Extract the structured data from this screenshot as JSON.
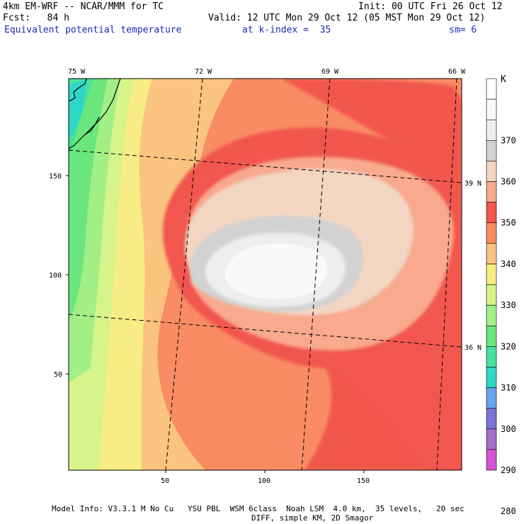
{
  "header": {
    "model_title": "4km EM-WRF -- NCAR/MMM for TC",
    "init_time": "Init: 00 UTC Fri 26 Oct 12",
    "forecast_hour": "Fcst:   84 h",
    "valid_time": "Valid: 12 UTC Mon 29 Oct 12 (05 MST Mon 29 Oct 12)",
    "field_name": "Equivalent potential temperature",
    "level": "at k-index =  35",
    "smoothing": "sm= 6"
  },
  "map": {
    "longitude_labels": [
      "75 W",
      "72 W",
      "69 W",
      "66 W"
    ],
    "latitude_labels": [
      "39 N",
      "36 N"
    ],
    "x_ticks": [
      "50",
      "100",
      "150"
    ],
    "y_ticks": [
      "150",
      "100",
      "50"
    ]
  },
  "colorbar": {
    "unit": "K",
    "labels": [
      "370",
      "360",
      "350",
      "340",
      "330",
      "320",
      "310",
      "300",
      "290",
      "280"
    ],
    "colors": [
      "#ffffff",
      "#f9f9f9",
      "#eeeeee",
      "#d2d2d2",
      "#f2d6c2",
      "#f8a98e",
      "#f1574e",
      "#f98c62",
      "#fac380",
      "#f8ec84",
      "#d6f48a",
      "#a2ef86",
      "#6be67c",
      "#44e39a",
      "#2fd8c6",
      "#65a6ec",
      "#7c72d9",
      "#a470c9",
      "#d355d2"
    ]
  },
  "colors": {
    "map_background": "#fac380",
    "coastline": "#000000",
    "gridline": "#000000",
    "header_blue": "#1a2ab8"
  },
  "footer": {
    "line1": "Model Info: V3.3.1 M No Cu   YSU PBL  WSM 6class  Noah LSM  4.0 km,  35 levels,   20 sec",
    "line2": "DIFF, simple KM, 2D Smagor"
  }
}
